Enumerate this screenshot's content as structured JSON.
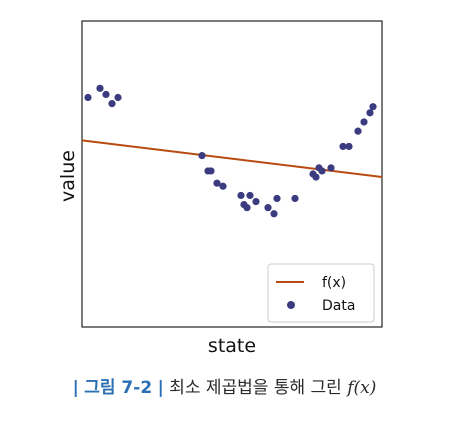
{
  "chart_data": {
    "type": "scatter",
    "title": "",
    "xlabel": "state",
    "ylabel": "value",
    "xlim": [
      0,
      100
    ],
    "ylim": [
      0,
      100
    ],
    "grid": false,
    "legend_position": "bottom-right",
    "series": [
      {
        "name": "Data",
        "kind": "scatter",
        "color": "#3b3b80",
        "x": [
          2,
          6,
          8,
          10,
          12,
          40,
          42,
          43,
          45,
          47,
          53,
          54,
          55,
          56,
          58,
          62,
          64,
          65,
          71,
          77,
          78,
          79,
          80,
          83,
          87,
          89,
          92,
          94,
          96,
          97
        ],
        "y": [
          75,
          78,
          76,
          73,
          75,
          56,
          51,
          51,
          47,
          46,
          43,
          40,
          39,
          43,
          41,
          39,
          37,
          42,
          42,
          50,
          49,
          52,
          51,
          52,
          59,
          59,
          64,
          67,
          70,
          72
        ]
      },
      {
        "name": "f(x)",
        "kind": "line",
        "color": "#b84a10",
        "x": [
          0,
          100
        ],
        "y": [
          61,
          49
        ]
      }
    ]
  },
  "caption": {
    "bar_left": "|",
    "figure_label": "그림 7-2",
    "bar_right": "|",
    "text": "최소 제곱법을 통해 그린",
    "func": "f(x)"
  }
}
